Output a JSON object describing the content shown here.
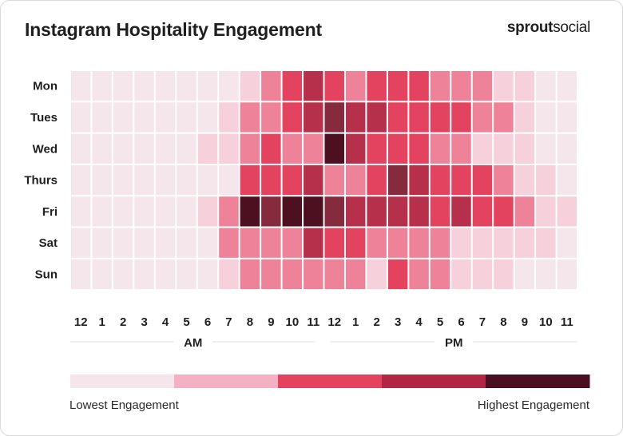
{
  "header": {
    "title": "Instagram Hospitality Engagement",
    "brand_bold": "sprout",
    "brand_regular": "social"
  },
  "chart_data": {
    "type": "heatmap",
    "title": "Instagram Hospitality Engagement",
    "days": [
      "Mon",
      "Tues",
      "Wed",
      "Thurs",
      "Fri",
      "Sat",
      "Sun"
    ],
    "hour_labels": [
      "12",
      "1",
      "2",
      "3",
      "4",
      "5",
      "6",
      "7",
      "8",
      "9",
      "10",
      "11",
      "12",
      "1",
      "2",
      "3",
      "4",
      "5",
      "6",
      "7",
      "8",
      "9",
      "10",
      "11"
    ],
    "period_labels": [
      "AM",
      "PM"
    ],
    "scale_note": "0 = lowest engagement, 8 = highest engagement",
    "values": [
      [
        0,
        0,
        0,
        0,
        0,
        0,
        0,
        0,
        1,
        3,
        4,
        6,
        4,
        3,
        4,
        4,
        4,
        3,
        3,
        3,
        1,
        1,
        0,
        0
      ],
      [
        0,
        0,
        0,
        0,
        0,
        0,
        0,
        1,
        3,
        3,
        4,
        6,
        7,
        6,
        6,
        4,
        4,
        4,
        4,
        3,
        3,
        1,
        0,
        0
      ],
      [
        0,
        0,
        0,
        0,
        0,
        0,
        1,
        1,
        3,
        4,
        3,
        3,
        8,
        6,
        4,
        4,
        4,
        3,
        3,
        1,
        1,
        1,
        0,
        0
      ],
      [
        0,
        0,
        0,
        0,
        0,
        0,
        0,
        0,
        4,
        4,
        4,
        6,
        3,
        3,
        4,
        7,
        6,
        4,
        4,
        4,
        3,
        1,
        1,
        0
      ],
      [
        0,
        0,
        0,
        0,
        0,
        0,
        1,
        3,
        8,
        7,
        8,
        8,
        7,
        6,
        6,
        6,
        6,
        4,
        6,
        4,
        4,
        3,
        1,
        1
      ],
      [
        0,
        0,
        0,
        0,
        0,
        0,
        0,
        3,
        3,
        3,
        3,
        6,
        4,
        4,
        3,
        3,
        3,
        3,
        1,
        1,
        1,
        1,
        1,
        0
      ],
      [
        0,
        0,
        0,
        0,
        0,
        0,
        0,
        1,
        3,
        3,
        3,
        3,
        3,
        3,
        1,
        4,
        3,
        3,
        1,
        1,
        1,
        0,
        0,
        0
      ]
    ],
    "color_steps": [
      "#f5e6eb",
      "#f6d0da",
      "#f4b9c8",
      "#ee8299",
      "#e4435f",
      "#d63a56",
      "#b6304c",
      "#862a3d",
      "#4d1020"
    ],
    "legend": {
      "colors": [
        "#f5e6eb",
        "#f4b1c3",
        "#e4435f",
        "#b02743",
        "#4a1021"
      ],
      "low_label": "Lowest Engagement",
      "high_label": "Highest Engagement"
    }
  }
}
